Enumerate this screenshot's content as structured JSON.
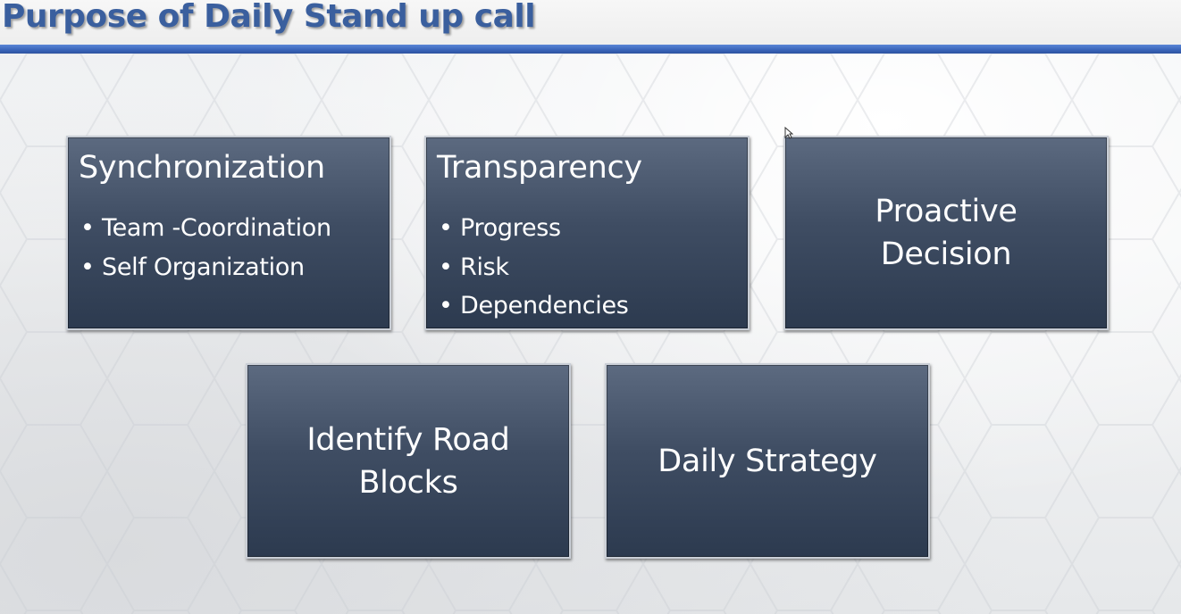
{
  "slide": {
    "title": "Purpose of Daily Stand up call"
  },
  "boxes": {
    "synchronization": {
      "heading": "Synchronization",
      "bullets": [
        "Team -Coordination",
        "Self Organization"
      ]
    },
    "transparency": {
      "heading": "Transparency",
      "bullets": [
        "Progress",
        "Risk",
        "Dependencies"
      ]
    },
    "proactive_decision": {
      "text": "Proactive Decision"
    },
    "identify_road_blocks": {
      "text": "Identify Road Blocks"
    },
    "daily_strategy": {
      "text": "Daily Strategy"
    }
  },
  "icons": {
    "bullet": "•",
    "cursor": "mouse-pointer-icon"
  },
  "colors": {
    "title": "#3a5f9e",
    "title_rule": "#3b66bb",
    "box_fill_top": "#5c6a80",
    "box_fill_bottom": "#2c3a4f",
    "box_text": "#ffffff"
  }
}
